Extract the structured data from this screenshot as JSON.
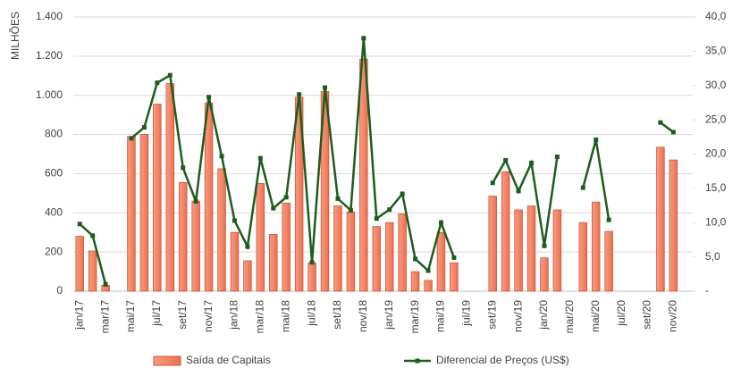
{
  "chart_data": {
    "type": "bar-line",
    "y_label": "MILHÕES",
    "categories": [
      "jan/17",
      null,
      "mar/17",
      null,
      "mai/17",
      null,
      "jul/17",
      null,
      "set/17",
      null,
      "nov/17",
      null,
      "jan/18",
      null,
      "mar/18",
      null,
      "mai/18",
      null,
      "jul/18",
      null,
      "set/18",
      null,
      "nov/18",
      null,
      "jan/19",
      null,
      "mar/19",
      null,
      "mai/19",
      null,
      "jul/19",
      null,
      "set/19",
      null,
      "nov/19",
      null,
      "jan/20",
      null,
      "mar/20",
      null,
      "mai/20",
      null,
      "jul/20",
      null,
      "set/20",
      null,
      "nov/20",
      null
    ],
    "series": [
      {
        "name": "Saída de Capitais",
        "type": "bar",
        "color": "#f4866a",
        "edge": "#c55a3a",
        "values": [
          280,
          205,
          30,
          null,
          790,
          800,
          955,
          1060,
          555,
          460,
          960,
          625,
          300,
          155,
          550,
          290,
          450,
          990,
          145,
          1020,
          435,
          405,
          1185,
          330,
          350,
          395,
          100,
          55,
          300,
          145,
          null,
          null,
          485,
          610,
          415,
          435,
          170,
          415,
          null,
          350,
          455,
          305,
          null,
          null,
          null,
          735,
          670,
          null
        ]
      },
      {
        "name": "Diferencial de Preços (US$)",
        "type": "line",
        "axis": "y2",
        "color": "#1e5c1e",
        "values": [
          9.8,
          8.1,
          1.0,
          null,
          22.3,
          23.9,
          30.4,
          31.5,
          18.0,
          13.1,
          28.3,
          19.7,
          10.3,
          6.5,
          19.4,
          12.1,
          13.7,
          28.7,
          4.2,
          29.7,
          13.5,
          11.8,
          36.9,
          10.6,
          11.9,
          14.2,
          4.7,
          3.0,
          10.0,
          4.9,
          null,
          null,
          15.8,
          19.1,
          14.6,
          18.7,
          6.6,
          19.6,
          null,
          15.1,
          22.1,
          10.4,
          null,
          null,
          null,
          24.6,
          23.2,
          null
        ]
      }
    ],
    "ylim": [
      0,
      1400
    ],
    "yticks": [
      0,
      200,
      400,
      600,
      800,
      {
        "value": 1000,
        "label": "1.000"
      },
      {
        "value": 1200,
        "label": "1.200"
      },
      {
        "value": 1400,
        "label": "1.400"
      }
    ],
    "y2lim": [
      0,
      40
    ],
    "y2ticks": [
      {
        "value": 0,
        "label": "-"
      },
      {
        "value": 5,
        "label": "5,0"
      },
      {
        "value": 10,
        "label": "10,0"
      },
      {
        "value": 15,
        "label": "15,0"
      },
      {
        "value": 20,
        "label": "20,0"
      },
      {
        "value": 25,
        "label": "25,0"
      },
      {
        "value": 30,
        "label": "30,0"
      },
      {
        "value": 35,
        "label": "35,0"
      },
      {
        "value": 40,
        "label": "40,0"
      }
    ],
    "grid": true,
    "legend": "bottom"
  }
}
